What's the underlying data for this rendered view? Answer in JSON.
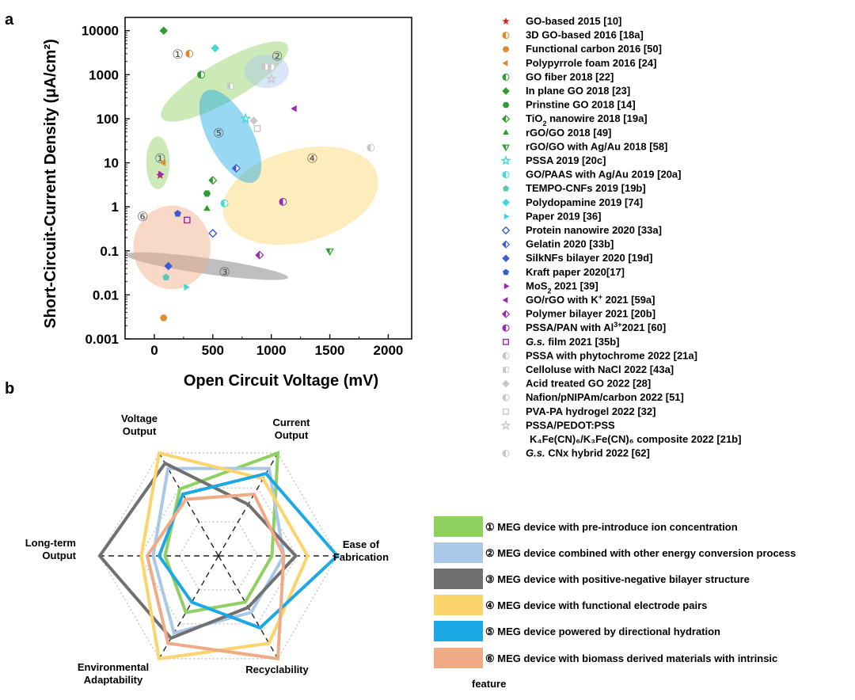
{
  "panel_labels": {
    "a": "a",
    "b": "b"
  },
  "colors": {
    "group1": "#8fd160",
    "group2": "#a9c8e8",
    "group3": "#707070",
    "group4": "#fbd56b",
    "group5": "#1ba8e4",
    "group6": "#f0aa86"
  },
  "chart_data": [
    {
      "type": "scatter",
      "xlabel": "Open Circuit Voltage (mV)",
      "ylabel": "Short-Circuit-Current Density (μA/cm²)",
      "x_ticks": [
        "0",
        "500",
        "1000",
        "1500",
        "2000"
      ],
      "y_ticks": [
        "0.001",
        "0.01",
        "0.1",
        "1",
        "10",
        "100",
        "1000",
        "10000"
      ],
      "xlim": [
        -250,
        2200
      ],
      "ylim": [
        0.001,
        20000
      ],
      "y_scale": "log",
      "regions": [
        {
          "label": "①",
          "cx": 30,
          "cy": 10,
          "rx": 100,
          "ry_decades": 0.6,
          "angle": 0,
          "color": "#8fd160"
        },
        {
          "label": "①",
          "cx": 600,
          "cy": 700,
          "rx": 620,
          "ry_decades": 0.45,
          "angle": 30,
          "color": "#8fd160"
        },
        {
          "label": "②",
          "cx": 960,
          "cy": 1200,
          "rx": 190,
          "ry_decades": 0.38,
          "angle": 0,
          "color": "#a9c8e8"
        },
        {
          "label": "③",
          "cx": 450,
          "cy": 0.045,
          "rx": 700,
          "ry_decades": 0.18,
          "angle": -8,
          "color": "#707070"
        },
        {
          "label": "④",
          "cx": 1250,
          "cy": 1.8,
          "rx": 680,
          "ry_decades": 1.05,
          "angle": 15,
          "color": "#fbd56b"
        },
        {
          "label": "⑤",
          "cx": 650,
          "cy": 40,
          "rx": 440,
          "ry_decades": 0.5,
          "angle": -62,
          "color": "#1ba8e4"
        },
        {
          "label": "⑥",
          "cx": 150,
          "cy": 0.12,
          "rx": 330,
          "ry_decades": 0.95,
          "angle": 0,
          "color": "#f0aa86"
        }
      ],
      "region_labels": [
        {
          "text": "①",
          "x": 50,
          "y": 12
        },
        {
          "text": "①",
          "x": 200,
          "y": 2800
        },
        {
          "text": "②",
          "x": 1050,
          "y": 2500
        },
        {
          "text": "③",
          "x": 600,
          "y": 0.032
        },
        {
          "text": "④",
          "x": 1350,
          "y": 12
        },
        {
          "text": "⑤",
          "x": 550,
          "y": 45
        },
        {
          "text": "⑥",
          "x": -100,
          "y": 0.58
        }
      ],
      "series": [
        {
          "name": "GO-based 2015 [10]",
          "marker": "star",
          "color": "#d9251d",
          "x": [
            50
          ],
          "y": [
            5.2
          ]
        },
        {
          "name": "3D GO-based 2016 [18a]",
          "marker": "circle-half",
          "color": "#e08a2c",
          "x": [
            300
          ],
          "y": [
            3000
          ]
        },
        {
          "name": "Functional carbon 2016 [50]",
          "marker": "hexagon",
          "color": "#e08a2c",
          "x": [
            80
          ],
          "y": [
            0.003
          ]
        },
        {
          "name": "Polypyrrole foam 2016 [24]",
          "marker": "triangle-left",
          "color": "#e08a2c",
          "x": [
            80
          ],
          "y": [
            10
          ]
        },
        {
          "name": "GO fiber 2018 [22]",
          "marker": "circle-half",
          "color": "#2e9c2e",
          "x": [
            400
          ],
          "y": [
            1000
          ]
        },
        {
          "name": "In plane GO 2018 [23]",
          "marker": "diamond",
          "color": "#2e9c2e",
          "x": [
            80
          ],
          "y": [
            10000
          ]
        },
        {
          "name": "Prinstine GO 2018 [14]",
          "marker": "hexagon",
          "color": "#2e9c2e",
          "x": [
            450
          ],
          "y": [
            2
          ]
        },
        {
          "name": "TiO2 nanowire 2018 [19a]",
          "marker": "diamond-half",
          "color": "#2e9c2e",
          "x": [
            500
          ],
          "y": [
            4
          ]
        },
        {
          "name": "rGO/GO 2018 [49]",
          "marker": "triangle-up",
          "color": "#2e9c2e",
          "x": [
            450
          ],
          "y": [
            0.9
          ]
        },
        {
          "name": "rGO/GO with Ag/Au 2018 [58]",
          "marker": "triangle-down-half",
          "color": "#2e9c2e",
          "x": [
            1500
          ],
          "y": [
            0.1
          ]
        },
        {
          "name": "PSSA 2019 [20c]",
          "marker": "star-open",
          "color": "#3fd8d8",
          "x": [
            780
          ],
          "y": [
            100
          ]
        },
        {
          "name": "GO/PAAS with Ag/Au 2019 [20a]",
          "marker": "circle-half",
          "color": "#3fd8d8",
          "x": [
            600
          ],
          "y": [
            1.2
          ]
        },
        {
          "name": "TEMPO-CNFs 2019 [19b]",
          "marker": "pentagon",
          "color": "#5bc6b5",
          "x": [
            100
          ],
          "y": [
            0.025
          ]
        },
        {
          "name": "Polydopamine 2019 [74]",
          "marker": "diamond",
          "color": "#3fd8d8",
          "x": [
            520
          ],
          "y": [
            4000
          ]
        },
        {
          "name": "Paper 2019 [36]",
          "marker": "triangle-right",
          "color": "#3fd8d8",
          "x": [
            270
          ],
          "y": [
            0.015
          ]
        },
        {
          "name": "Protein nanowire 2020 [33a]",
          "marker": "diamond-open",
          "color": "#3b5bd6",
          "x": [
            500
          ],
          "y": [
            0.25
          ]
        },
        {
          "name": "Gelatin 2020 [33b]",
          "marker": "diamond-half",
          "color": "#3b5bd6",
          "x": [
            700
          ],
          "y": [
            7.5
          ]
        },
        {
          "name": "SilkNFs bilayer 2020 [19d]",
          "marker": "diamond",
          "color": "#3b5bd6",
          "x": [
            120
          ],
          "y": [
            0.045
          ]
        },
        {
          "name": "Kraft paper 2020[17]",
          "marker": "pentagon",
          "color": "#3b5bd6",
          "x": [
            200
          ],
          "y": [
            0.7
          ]
        },
        {
          "name": "MoS2 2021 [39]",
          "marker": "triangle-right",
          "color": "#9c27b0",
          "x": [
            50
          ],
          "y": [
            5.5
          ]
        },
        {
          "name": "GO/rGO with K+ 2021 [59a]",
          "marker": "triangle-left",
          "color": "#9c27b0",
          "x": [
            1200
          ],
          "y": [
            170
          ]
        },
        {
          "name": "Polymer bilayer 2021 [20b]",
          "marker": "diamond-half",
          "color": "#9c27b0",
          "x": [
            900
          ],
          "y": [
            0.08
          ]
        },
        {
          "name": "PSSA/PAN with Al3+2021 [60]",
          "marker": "circle-half",
          "color": "#9c27b0",
          "x": [
            1100
          ],
          "y": [
            1.3
          ]
        },
        {
          "name": "G.s. film 2021 [35b]",
          "marker": "square-open",
          "color": "#9c27b0",
          "x": [
            280
          ],
          "y": [
            0.5
          ]
        },
        {
          "name": "PSSA with phytochrome 2022 [21a]",
          "marker": "circle-half",
          "color": "#c8c8c8",
          "x": [
            950
          ],
          "y": [
            1500
          ]
        },
        {
          "name": "Celloluse with NaCl 2022 [43a]",
          "marker": "square-half",
          "color": "#c8c8c8",
          "x": [
            650
          ],
          "y": [
            550
          ]
        },
        {
          "name": "Acid treated GO 2022 [28]",
          "marker": "diamond",
          "color": "#c8c8c8",
          "x": [
            850
          ],
          "y": [
            90
          ]
        },
        {
          "name": "Nafion/pNIPAm/carbon 2022 [51]",
          "marker": "circle-half",
          "color": "#c8c8c8",
          "x": [
            1000
          ],
          "y": [
            1500
          ]
        },
        {
          "name": "PVA-PA hydrogel 2022 [32]",
          "marker": "square-open",
          "color": "#c8c8c8",
          "x": [
            880
          ],
          "y": [
            60
          ]
        },
        {
          "name": "PSSA/PEDOT:PSS K4Fe(CN)6/K3Fe(CN)6 composite 2022 [21b]",
          "marker": "star-open",
          "color": "#c8c8c8",
          "x": [
            1000
          ],
          "y": [
            800
          ]
        },
        {
          "name": "G.s. CNx hybrid 2022 [62]",
          "marker": "circle-half",
          "color": "#c8c8c8",
          "x": [
            1850
          ],
          "y": [
            22
          ]
        }
      ],
      "legend": [
        {
          "pre": "GO-based 2015 [10]"
        },
        {
          "pre": "3D GO-based 2016 [18a]"
        },
        {
          "pre": "Functional carbon 2016 [50]"
        },
        {
          "pre": "Polypyrrole foam 2016 [24]"
        },
        {
          "pre": "GO fiber 2018 [22]"
        },
        {
          "pre": "In plane GO 2018 [23]"
        },
        {
          "pre": "Prinstine GO 2018 [14]"
        },
        {
          "pre": "TiO",
          "sub": "2",
          "post": " nanowire 2018 [19a]"
        },
        {
          "pre": "rGO/GO 2018 [49]"
        },
        {
          "pre": "rGO/GO with Ag/Au 2018 [58]"
        },
        {
          "pre": " PSSA 2019 [20c]"
        },
        {
          "pre": "GO/PAAS with Ag/Au 2019 [20a]"
        },
        {
          "pre": "TEMPO-CNFs 2019 [19b]"
        },
        {
          "pre": "Polydopamine 2019 [74]"
        },
        {
          "pre": "Paper 2019 [36]"
        },
        {
          "pre": "Protein nanowire 2020 [33a]"
        },
        {
          "pre": "Gelatin 2020 [33b]"
        },
        {
          "pre": "SilkNFs bilayer 2020 [19d]"
        },
        {
          "pre": "Kraft paper 2020[17]"
        },
        {
          "pre": "MoS",
          "sub": "2",
          "post": " 2021 [39]"
        },
        {
          "pre": "GO/rGO with K",
          "sup": "+",
          "post": " 2021 [59a]"
        },
        {
          "pre": "Polymer bilayer 2021 [20b]"
        },
        {
          "pre": "PSSA/PAN with Al",
          "sup": "3+",
          "post": "2021 [60]"
        },
        {
          "italic": "G.s.",
          "post": " film 2021 [35b]"
        },
        {
          "pre": "PSSA with phytochrome 2022 [21a]"
        },
        {
          "pre": "Celloluse with NaCl 2022 [43a]"
        },
        {
          "pre": "Acid treated GO 2022 [28]"
        },
        {
          "pre": "Nafion/pNIPAm/carbon 2022 [51]"
        },
        {
          "pre": "PVA-PA hydrogel 2022 [32]"
        },
        {
          "pre": "PSSA/PEDOT:PSS",
          "line2": "K₄Fe(CN)₆/K₃Fe(CN)₆ composite 2022 [21b]"
        },
        {
          "italic": "G.s.",
          "post": " CNx hybrid 2022 [62]"
        }
      ]
    },
    {
      "type": "radar",
      "axes": [
        {
          "key": "current",
          "label": [
            "Current",
            "Output"
          ]
        },
        {
          "key": "ease",
          "label": [
            "Ease of",
            "Fabrication"
          ]
        },
        {
          "key": "recyclability",
          "label": [
            "Recyclability"
          ]
        },
        {
          "key": "environmental",
          "label": [
            "Environmental",
            "Adaptability"
          ]
        },
        {
          "key": "longterm",
          "label": [
            "Long-term",
            "Output"
          ]
        },
        {
          "key": "voltage",
          "label": [
            "Voltage",
            "Output"
          ]
        }
      ],
      "range": [
        0,
        1
      ],
      "series": [
        {
          "name": "① MEG device with pre-introduce ion concentration",
          "color": "#8fd160",
          "values": [
            1.0,
            0.45,
            0.45,
            0.55,
            0.45,
            0.65
          ]
        },
        {
          "name": "② MEG device combined with other energy conversion process",
          "color": "#a9c8e8",
          "values": [
            0.85,
            0.55,
            0.55,
            0.75,
            0.55,
            0.85
          ]
        },
        {
          "name": "③ MEG device with positive-negative bilayer structure",
          "color": "#707070",
          "values": [
            0.5,
            0.65,
            0.5,
            0.8,
            1.0,
            0.9
          ]
        },
        {
          "name": "④ MEG device with functional electrode pairs",
          "color": "#fbd56b",
          "values": [
            0.75,
            0.75,
            0.85,
            1.0,
            0.65,
            1.0
          ]
        },
        {
          "name": "⑤ MEG device powered by directional hydration",
          "color": "#1ba8e4",
          "values": [
            0.8,
            1.0,
            0.7,
            0.45,
            0.5,
            0.6
          ]
        },
        {
          "name": "⑥ MEG device with biomass derived materials with intrinsic feature",
          "color": "#f0aa86",
          "values": [
            0.6,
            0.55,
            1.0,
            0.85,
            0.6,
            0.55
          ]
        }
      ]
    }
  ]
}
